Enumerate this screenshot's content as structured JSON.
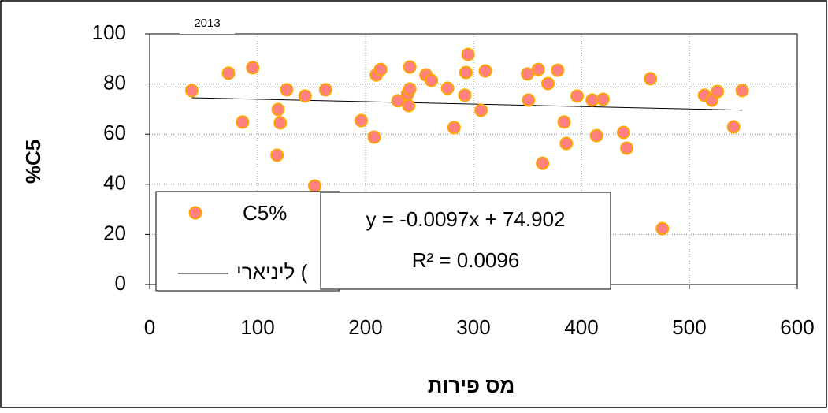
{
  "chart_data": {
    "type": "scatter",
    "title": "2013",
    "x_label": "מס פירות",
    "y_label": "%C5",
    "series": [
      {
        "name": "C5%",
        "color": "#ff8080",
        "edge_color": "#ffa500",
        "x": [
          39,
          73,
          86,
          95.5,
          119,
          118,
          121,
          127,
          144,
          153,
          163,
          196,
          208,
          210,
          214,
          230,
          239,
          240,
          241,
          241,
          256,
          261,
          276,
          282,
          292,
          293,
          295,
          307,
          311,
          350,
          351,
          360,
          364,
          369,
          378,
          384,
          386,
          396,
          410,
          414,
          420,
          439,
          442,
          464,
          475,
          514,
          521,
          526,
          541,
          549
        ],
        "values": [
          77.4,
          84.3,
          64.8,
          86.5,
          69.8,
          51.6,
          64.5,
          77.7,
          75.2,
          39.3,
          77.7,
          65.4,
          58.8,
          83.6,
          85.8,
          73.3,
          76.1,
          71.4,
          78,
          86.8,
          83.6,
          81.4,
          78.3,
          62.6,
          75.5,
          84.6,
          91.8,
          69.5,
          85.2,
          84,
          73.6,
          85.8,
          48.4,
          80.2,
          85.5,
          64.8,
          56.3,
          75.2,
          73.6,
          59.4,
          73.9,
          60.7,
          54.4,
          82.1,
          22.3,
          75.5,
          73.6,
          77,
          62.9,
          77.4
        ]
      }
    ],
    "trendline": {
      "name": "ליניארי (",
      "color": "#000000",
      "slope": -0.0097,
      "intercept": 74.902,
      "equation": "y = -0.0097x + 74.902",
      "r2_label": "R² = 0.0096"
    },
    "xlim": [
      0,
      600
    ],
    "xticks": [
      0,
      100,
      200,
      300,
      400,
      500,
      600
    ],
    "ylim": [
      0,
      100
    ],
    "yticks": [
      0,
      20,
      40,
      60,
      80,
      100
    ],
    "grid": true
  }
}
